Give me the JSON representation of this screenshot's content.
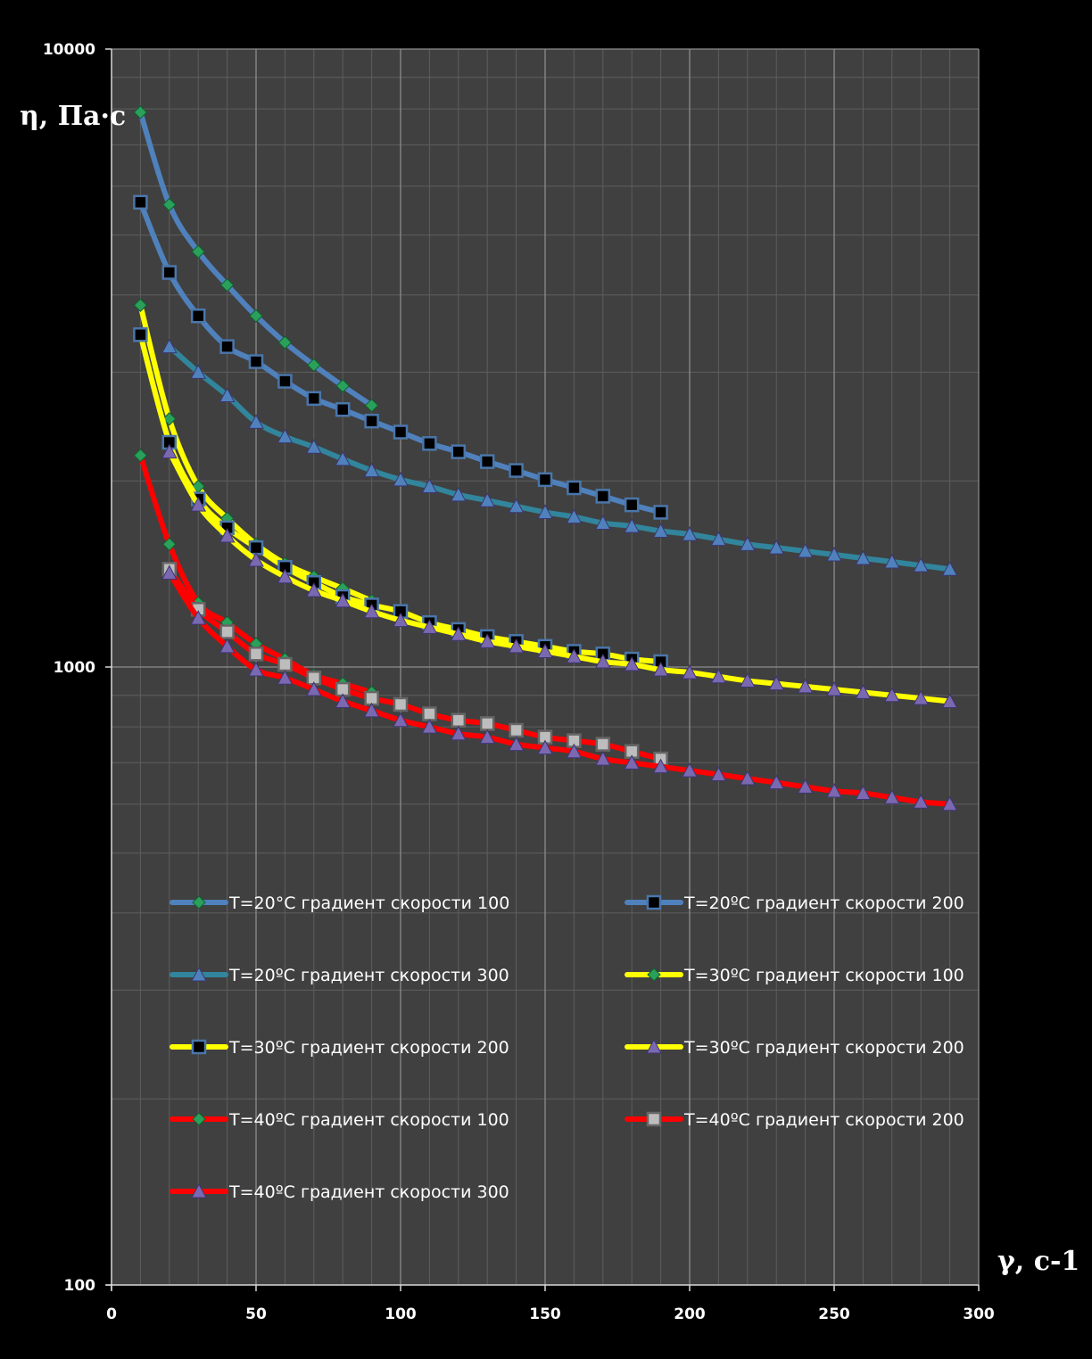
{
  "chart_data": {
    "type": "line",
    "title": "",
    "xlabel": "γ, c-1",
    "ylabel": "η, Па·с",
    "y_scale": "log",
    "xlim": [
      0,
      300
    ],
    "ylim": [
      100,
      10000
    ],
    "x_ticks": [
      "0",
      "50",
      "100",
      "150",
      "200",
      "250",
      "300"
    ],
    "y_ticks": [
      "100",
      "1000",
      "10000"
    ],
    "grid": true,
    "background": "#404040",
    "legend_position": "inside-bottom",
    "series": [
      {
        "name": "T=20°C градиент скорости 100",
        "color": "#4f81bd",
        "marker": "diamond",
        "marker_color": "#2aa05a",
        "x": [
          10,
          20,
          30,
          40,
          50,
          60,
          70,
          80,
          90
        ],
        "y": [
          7900,
          5600,
          4700,
          4150,
          3700,
          3350,
          3080,
          2850,
          2650
        ]
      },
      {
        "name": "T=20ºC градиент скорости 200",
        "color": "#4f81bd",
        "marker": "square",
        "marker_color": "#000000",
        "x": [
          10,
          20,
          30,
          40,
          50,
          60,
          70,
          80,
          90,
          100,
          110,
          120,
          130,
          140,
          150,
          160,
          170,
          180,
          190
        ],
        "y": [
          5650,
          4350,
          3700,
          3300,
          3120,
          2900,
          2720,
          2610,
          2500,
          2400,
          2300,
          2230,
          2150,
          2080,
          2010,
          1950,
          1890,
          1830,
          1780
        ]
      },
      {
        "name": "T=20ºC градиент скорости 300",
        "color": "#31859c",
        "marker": "triangle",
        "marker_color": "#4f81bd",
        "x": [
          20,
          30,
          40,
          50,
          60,
          70,
          80,
          90,
          100,
          110,
          120,
          130,
          140,
          150,
          160,
          170,
          180,
          190,
          200,
          210,
          220,
          230,
          240,
          250,
          260,
          270,
          280,
          290
        ],
        "y": [
          3300,
          3000,
          2750,
          2490,
          2360,
          2270,
          2170,
          2080,
          2010,
          1960,
          1900,
          1860,
          1820,
          1780,
          1750,
          1710,
          1690,
          1660,
          1640,
          1610,
          1580,
          1560,
          1540,
          1520,
          1500,
          1480,
          1460,
          1440
        ]
      },
      {
        "name": "T=30ºC градиент скорости 100",
        "color": "#ffff00",
        "marker": "diamond",
        "marker_color": "#2aa05a",
        "x": [
          10,
          20,
          30,
          40,
          50,
          60,
          70,
          80,
          90
        ],
        "y": [
          3850,
          2520,
          1960,
          1740,
          1580,
          1470,
          1400,
          1340,
          1280
        ]
      },
      {
        "name": "T=30ºC градиент скорости 200",
        "color": "#ffff00",
        "marker": "square",
        "marker_color": "#000000",
        "x": [
          10,
          20,
          30,
          40,
          50,
          60,
          70,
          80,
          90,
          100,
          110,
          120,
          130,
          140,
          150,
          160,
          170,
          180,
          190
        ],
        "y": [
          3450,
          2310,
          1870,
          1680,
          1560,
          1450,
          1370,
          1300,
          1260,
          1230,
          1180,
          1150,
          1120,
          1100,
          1080,
          1060,
          1050,
          1030,
          1020
        ]
      },
      {
        "name": "T=30ºC градиент скорости 200",
        "color": "#ffff00",
        "marker": "triangle",
        "marker_color": "#7a68b0",
        "x": [
          20,
          30,
          40,
          50,
          60,
          70,
          80,
          90,
          100,
          110,
          120,
          130,
          140,
          150,
          160,
          170,
          180,
          190,
          200,
          210,
          220,
          230,
          240,
          250,
          260,
          270,
          280,
          290
        ],
        "y": [
          2230,
          1830,
          1630,
          1490,
          1400,
          1330,
          1280,
          1230,
          1190,
          1160,
          1130,
          1100,
          1080,
          1060,
          1040,
          1020,
          1010,
          990,
          980,
          965,
          950,
          940,
          930,
          920,
          910,
          900,
          890,
          880
        ]
      },
      {
        "name": "T=40ºC градиент скорости 100",
        "color": "#ff0000",
        "marker": "diamond",
        "marker_color": "#2aa05a",
        "x": [
          10,
          20,
          30,
          40,
          50,
          60,
          70,
          80,
          90
        ],
        "y": [
          2200,
          1580,
          1270,
          1180,
          1090,
          1030,
          970,
          940,
          910
        ]
      },
      {
        "name": "T=40ºC градиент скорости 200",
        "color": "#ff0000",
        "marker": "square",
        "marker_color": "#bdbdbd",
        "x": [
          20,
          30,
          40,
          50,
          60,
          70,
          80,
          90,
          100,
          110,
          120,
          130,
          140,
          150,
          160,
          170,
          180,
          190
        ],
        "y": [
          1440,
          1240,
          1140,
          1050,
          1010,
          960,
          920,
          890,
          870,
          840,
          820,
          810,
          790,
          770,
          760,
          750,
          730,
          710
        ]
      },
      {
        "name": "T=40ºC градиент скорости 300",
        "color": "#ff0000",
        "marker": "triangle",
        "marker_color": "#7a68b0",
        "x": [
          20,
          30,
          40,
          50,
          60,
          70,
          80,
          90,
          100,
          110,
          120,
          130,
          140,
          150,
          160,
          170,
          180,
          190,
          200,
          210,
          220,
          230,
          240,
          250,
          260,
          270,
          280,
          290
        ],
        "y": [
          1420,
          1200,
          1080,
          990,
          960,
          920,
          880,
          850,
          820,
          800,
          780,
          770,
          750,
          740,
          730,
          710,
          700,
          690,
          680,
          670,
          660,
          650,
          640,
          630,
          625,
          615,
          605,
          600
        ]
      }
    ]
  }
}
